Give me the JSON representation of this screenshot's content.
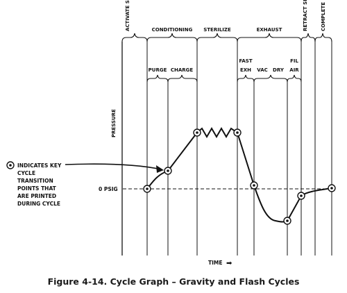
{
  "diagram": {
    "phases": {
      "activate": "ACTIVATE SEAL(S)",
      "conditioning": "CONDITIONING",
      "sterilize": "STERILIZE",
      "exhaust": "EXHAUST",
      "retract": "RETRACT SEAL(S)",
      "complete": "COMPLETE"
    },
    "subphases": {
      "purge": "PURGE",
      "charge": "CHARGE",
      "fast": "FAST",
      "exh": "EXH",
      "vac": "VAC",
      "dry": "DRY",
      "fil": "FIL",
      "air": "AIR"
    },
    "axes": {
      "y_label": "PRESSURE",
      "x_label": "TIME",
      "zero_label": "0 PSIG",
      "arrow_glyph": "➡"
    },
    "legend": {
      "lines": [
        "INDICATES KEY",
        "CYCLE",
        "TRANSITION",
        "POINTS THAT",
        "ARE PRINTED",
        "DURING CYCLE"
      ]
    }
  },
  "caption": "Figure 4-14. Cycle Graph – Gravity and Flash Cycles"
}
